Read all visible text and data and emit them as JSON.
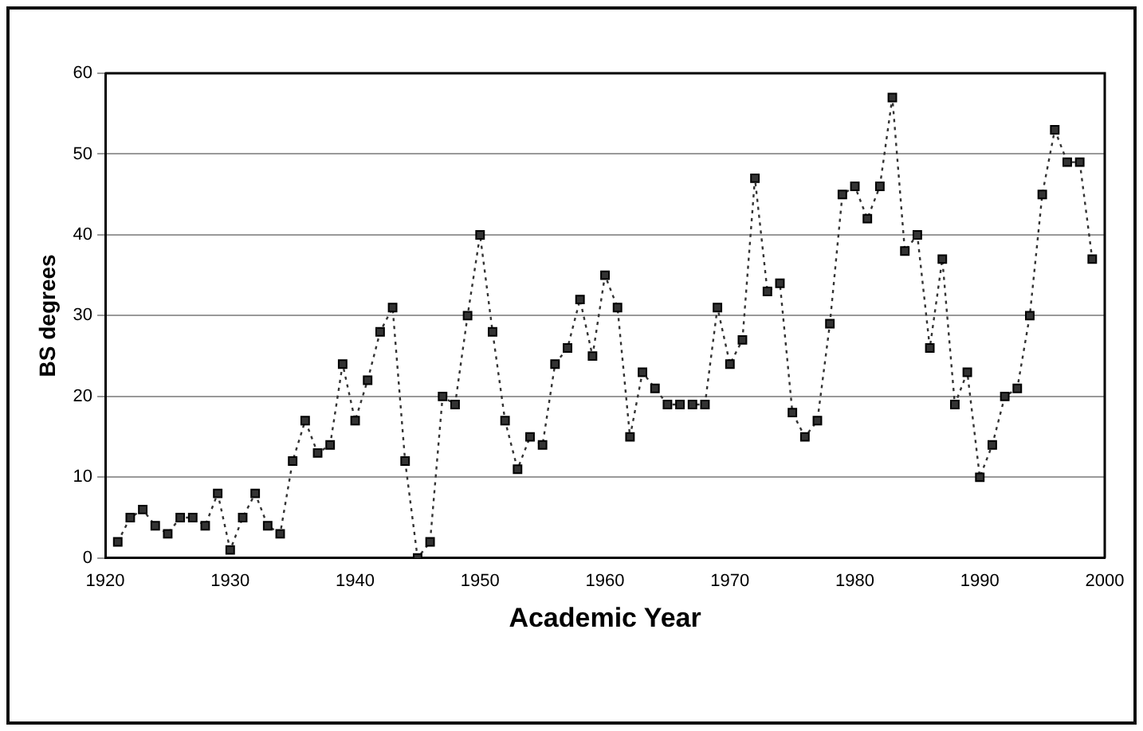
{
  "chart_data": {
    "type": "line",
    "xlabel": "Academic Year",
    "ylabel": "BS degrees",
    "x": [
      1921,
      1922,
      1923,
      1924,
      1925,
      1926,
      1927,
      1928,
      1929,
      1930,
      1931,
      1932,
      1933,
      1934,
      1935,
      1936,
      1937,
      1938,
      1939,
      1940,
      1941,
      1942,
      1943,
      1944,
      1945,
      1946,
      1947,
      1948,
      1949,
      1950,
      1951,
      1952,
      1953,
      1954,
      1955,
      1956,
      1957,
      1958,
      1959,
      1960,
      1961,
      1962,
      1963,
      1964,
      1965,
      1966,
      1967,
      1968,
      1969,
      1970,
      1971,
      1972,
      1973,
      1974,
      1975,
      1976,
      1977,
      1978,
      1979,
      1980,
      1981,
      1982,
      1983,
      1984,
      1985,
      1986,
      1987,
      1988,
      1989,
      1990,
      1991,
      1992,
      1993,
      1994,
      1995,
      1996,
      1997,
      1998,
      1999
    ],
    "series": [
      {
        "color": "#333333",
        "values": [
          2,
          5,
          6,
          4,
          3,
          5,
          5,
          4,
          8,
          1,
          5,
          8,
          4,
          3,
          12,
          17,
          13,
          14,
          24,
          17,
          22,
          28,
          31,
          12,
          0,
          2,
          20,
          19,
          30,
          40,
          28,
          17,
          11,
          15,
          14,
          24,
          26,
          32,
          25,
          35,
          31,
          15,
          23,
          21,
          19,
          19,
          19,
          19,
          31,
          24,
          27,
          47,
          33,
          34,
          18,
          15,
          17,
          29,
          45,
          46,
          42,
          46,
          57,
          38,
          40,
          26,
          37,
          19,
          23,
          10,
          14,
          20,
          21,
          30,
          45,
          53,
          49,
          49,
          37
        ]
      }
    ],
    "xlim": [
      1920,
      2000
    ],
    "xticks": [
      1920,
      1930,
      1940,
      1950,
      1960,
      1970,
      1980,
      1990,
      2000
    ],
    "ylim": [
      0,
      60
    ],
    "yticks": [
      0,
      10,
      20,
      30,
      40,
      50,
      60
    ],
    "grid": "y",
    "marker": "square",
    "line_style": "dotted",
    "legend": false
  }
}
